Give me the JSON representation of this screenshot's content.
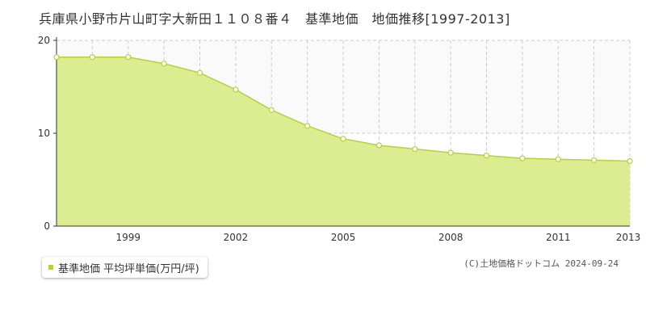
{
  "header": {
    "title": "兵庫県小野市片山町字大新田１１０８番４　基準地価　地価推移[1997-2013]"
  },
  "legend": {
    "label": "基準地価 平均坪単価(万円/坪)"
  },
  "footer": {
    "copyright": "(C)土地価格ドットコム 2024-09-24"
  },
  "colors": {
    "area_fill": "#dcec90",
    "area_line": "#b5d335",
    "marker_fill": "#ffffff",
    "grid": "#cccccc",
    "axis": "#333333"
  },
  "chart_data": {
    "type": "area",
    "title": "兵庫県小野市片山町字大新田１１０８番４　基準地価　地価推移[1997-2013]",
    "xlabel": "",
    "ylabel": "",
    "x": [
      1997,
      1998,
      1999,
      2000,
      2001,
      2002,
      2003,
      2004,
      2005,
      2006,
      2007,
      2008,
      2009,
      2010,
      2011,
      2012,
      2013
    ],
    "xlim": [
      1997,
      2013
    ],
    "ylim": [
      0,
      20
    ],
    "xticks": [
      1999,
      2002,
      2005,
      2008,
      2011,
      2013
    ],
    "yticks": [
      0,
      10,
      20
    ],
    "grid": true,
    "legend_position": "bottom-left",
    "series": [
      {
        "name": "基準地価 平均坪単価(万円/坪)",
        "values": [
          18.2,
          18.2,
          18.2,
          17.5,
          16.5,
          14.7,
          12.5,
          10.8,
          9.4,
          8.7,
          8.3,
          7.9,
          7.6,
          7.3,
          7.2,
          7.1,
          7.0
        ]
      }
    ]
  }
}
